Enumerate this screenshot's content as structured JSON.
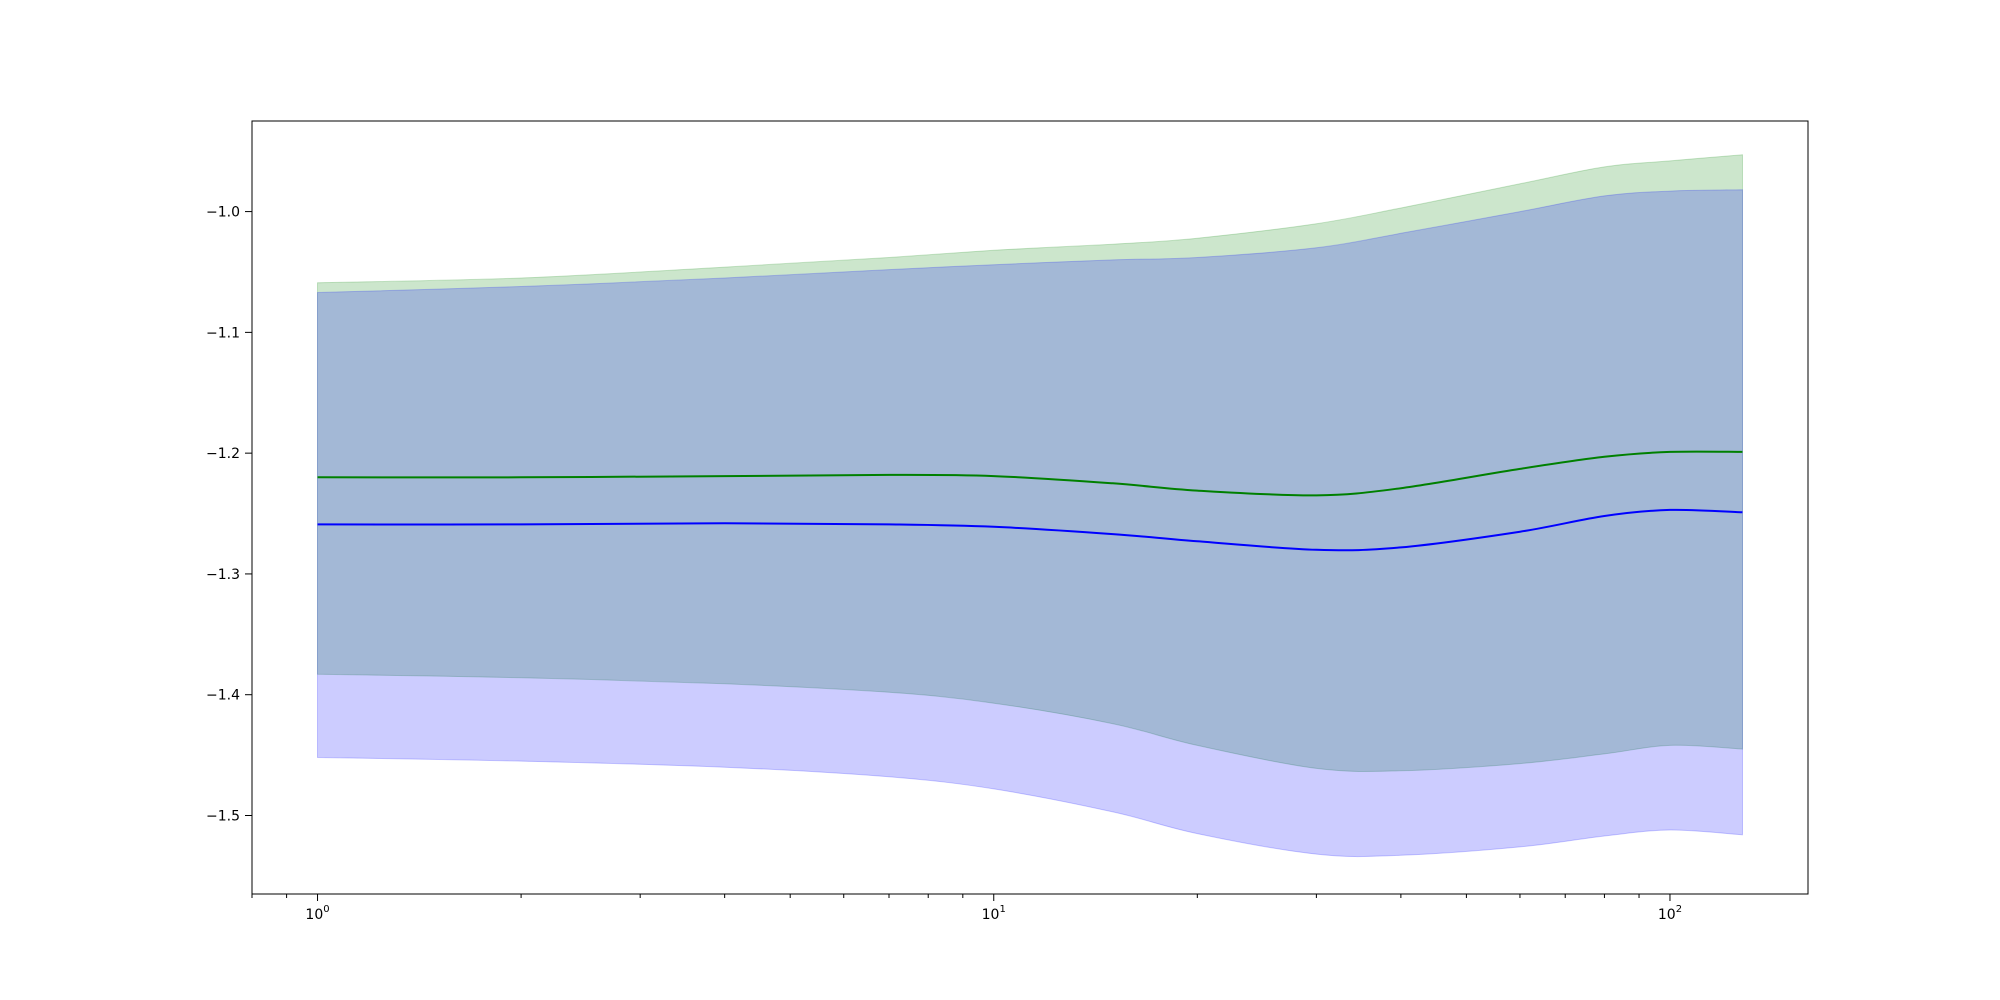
{
  "chart_data": {
    "type": "line",
    "title": "",
    "xlabel": "",
    "ylabel": "",
    "xscale": "log",
    "xlim": [
      0.8,
      160
    ],
    "ylim": [
      -1.565,
      -0.925
    ],
    "grid": false,
    "x_ticks": [
      {
        "value": 1,
        "label": "10",
        "exp": "0"
      },
      {
        "value": 10,
        "label": "10",
        "exp": "1"
      },
      {
        "value": 100,
        "label": "10",
        "exp": "2"
      }
    ],
    "y_ticks": [
      {
        "value": -1.0,
        "label": "−1.0"
      },
      {
        "value": -1.1,
        "label": "−1.1"
      },
      {
        "value": -1.2,
        "label": "−1.2"
      },
      {
        "value": -1.3,
        "label": "−1.3"
      },
      {
        "value": -1.4,
        "label": "−1.4"
      },
      {
        "value": -1.5,
        "label": "−1.5"
      }
    ],
    "x": [
      1,
      2,
      4,
      7,
      10,
      15,
      20,
      30,
      40,
      60,
      80,
      100,
      128
    ],
    "series": [
      {
        "color": "#008000",
        "band_color": "#008000",
        "band_opacity": 0.2,
        "mean": [
          -1.22,
          -1.22,
          -1.219,
          -1.218,
          -1.219,
          -1.225,
          -1.231,
          -1.235,
          -1.229,
          -1.213,
          -1.203,
          -1.199,
          -1.199
        ],
        "upper": [
          -1.059,
          -1.055,
          -1.046,
          -1.038,
          -1.032,
          -1.027,
          -1.022,
          -1.01,
          -0.997,
          -0.977,
          -0.963,
          -0.958,
          -0.953
        ],
        "lower": [
          -1.383,
          -1.386,
          -1.391,
          -1.398,
          -1.407,
          -1.424,
          -1.442,
          -1.461,
          -1.463,
          -1.457,
          -1.449,
          -1.442,
          -1.445
        ]
      },
      {
        "color": "#0000ff",
        "band_color": "#0000ff",
        "band_opacity": 0.2,
        "mean": [
          -1.259,
          -1.259,
          -1.258,
          -1.259,
          -1.261,
          -1.267,
          -1.273,
          -1.28,
          -1.278,
          -1.265,
          -1.252,
          -1.247,
          -1.249
        ],
        "upper": [
          -1.067,
          -1.062,
          -1.055,
          -1.048,
          -1.044,
          -1.04,
          -1.038,
          -1.03,
          -1.018,
          -1.0,
          -0.987,
          -0.983,
          -0.982
        ],
        "lower": [
          -1.452,
          -1.455,
          -1.46,
          -1.468,
          -1.478,
          -1.497,
          -1.515,
          -1.532,
          -1.533,
          -1.526,
          -1.517,
          -1.512,
          -1.516
        ]
      }
    ]
  }
}
